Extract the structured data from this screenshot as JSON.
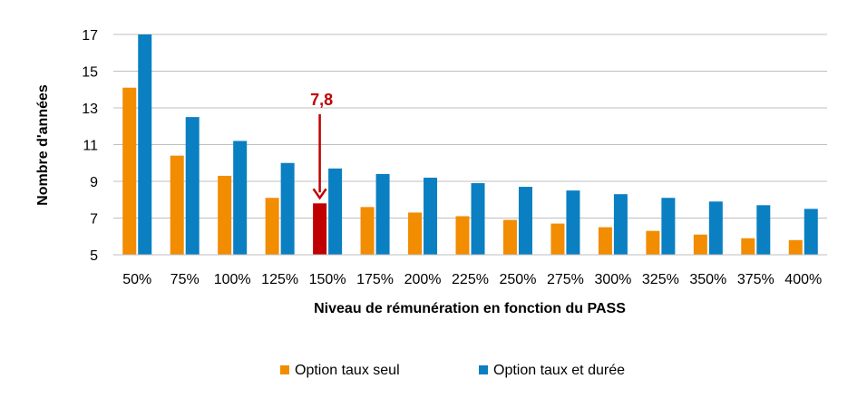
{
  "chart_data": {
    "type": "bar",
    "title": "",
    "xlabel": "Niveau de rémunération en fonction du PASS",
    "ylabel": "Nombre d'années",
    "ylim": [
      5,
      17
    ],
    "yticks": [
      "5",
      "7",
      "9",
      "11",
      "13",
      "15",
      "17"
    ],
    "grid": true,
    "legend_position": "bottom",
    "categories": [
      "50%",
      "75%",
      "100%",
      "125%",
      "150%",
      "175%",
      "200%",
      "225%",
      "250%",
      "275%",
      "300%",
      "325%",
      "350%",
      "375%",
      "400%"
    ],
    "series": [
      {
        "name": "Option taux seul",
        "color": "#F28C00",
        "values": [
          14.1,
          10.4,
          9.3,
          8.1,
          7.8,
          7.6,
          7.3,
          7.1,
          6.9,
          6.7,
          6.5,
          6.3,
          6.1,
          5.9,
          5.8
        ]
      },
      {
        "name": "Option taux et durée",
        "color": "#0A7FC2",
        "values": [
          17.0,
          12.5,
          11.2,
          10.0,
          9.7,
          9.4,
          9.2,
          8.9,
          8.7,
          8.5,
          8.3,
          8.1,
          7.9,
          7.7,
          7.5
        ]
      }
    ],
    "highlight": {
      "category_index": 4,
      "series_index": 0,
      "color": "#C00000",
      "label": "7,8"
    }
  }
}
